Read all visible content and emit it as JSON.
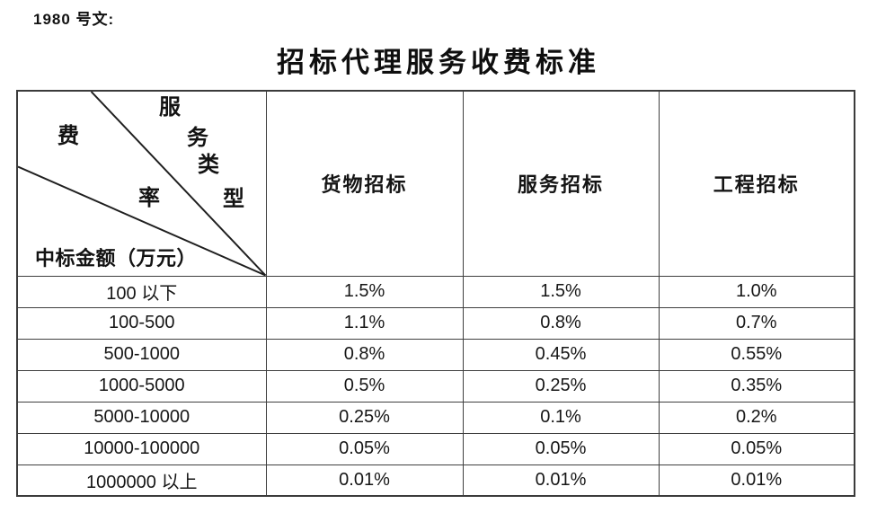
{
  "page": {
    "doc_ref": "1980 号文:",
    "title": "招标代理服务收费标准"
  },
  "table": {
    "corner": {
      "axis_top": {
        "label": "服务类型",
        "chars": [
          "服",
          "务",
          "类",
          "型"
        ]
      },
      "axis_mid": {
        "label": "费率",
        "chars": [
          "费",
          "率"
        ]
      },
      "axis_bottom": "中标金额（万元）"
    },
    "columns": [
      "货物招标",
      "服务招标",
      "工程招标"
    ],
    "rows": [
      {
        "range": "100 以下",
        "values": [
          "1.5%",
          "1.5%",
          "1.0%"
        ]
      },
      {
        "range": "100-500",
        "values": [
          "1.1%",
          "0.8%",
          "0.7%"
        ]
      },
      {
        "range": "500-1000",
        "values": [
          "0.8%",
          "0.45%",
          "0.55%"
        ]
      },
      {
        "range": "1000-5000",
        "values": [
          "0.5%",
          "0.25%",
          "0.35%"
        ]
      },
      {
        "range": "5000-10000",
        "values": [
          "0.25%",
          "0.1%",
          "0.2%"
        ]
      },
      {
        "range": "10000-100000",
        "values": [
          "0.05%",
          "0.05%",
          "0.05%"
        ]
      },
      {
        "range": "1000000 以上",
        "values": [
          "0.01%",
          "0.01%",
          "0.01%"
        ]
      }
    ]
  },
  "colors": {
    "background": "#ffffff",
    "text": "#141414",
    "table_border": "#3b3b3b",
    "header_separator": "#949494"
  }
}
